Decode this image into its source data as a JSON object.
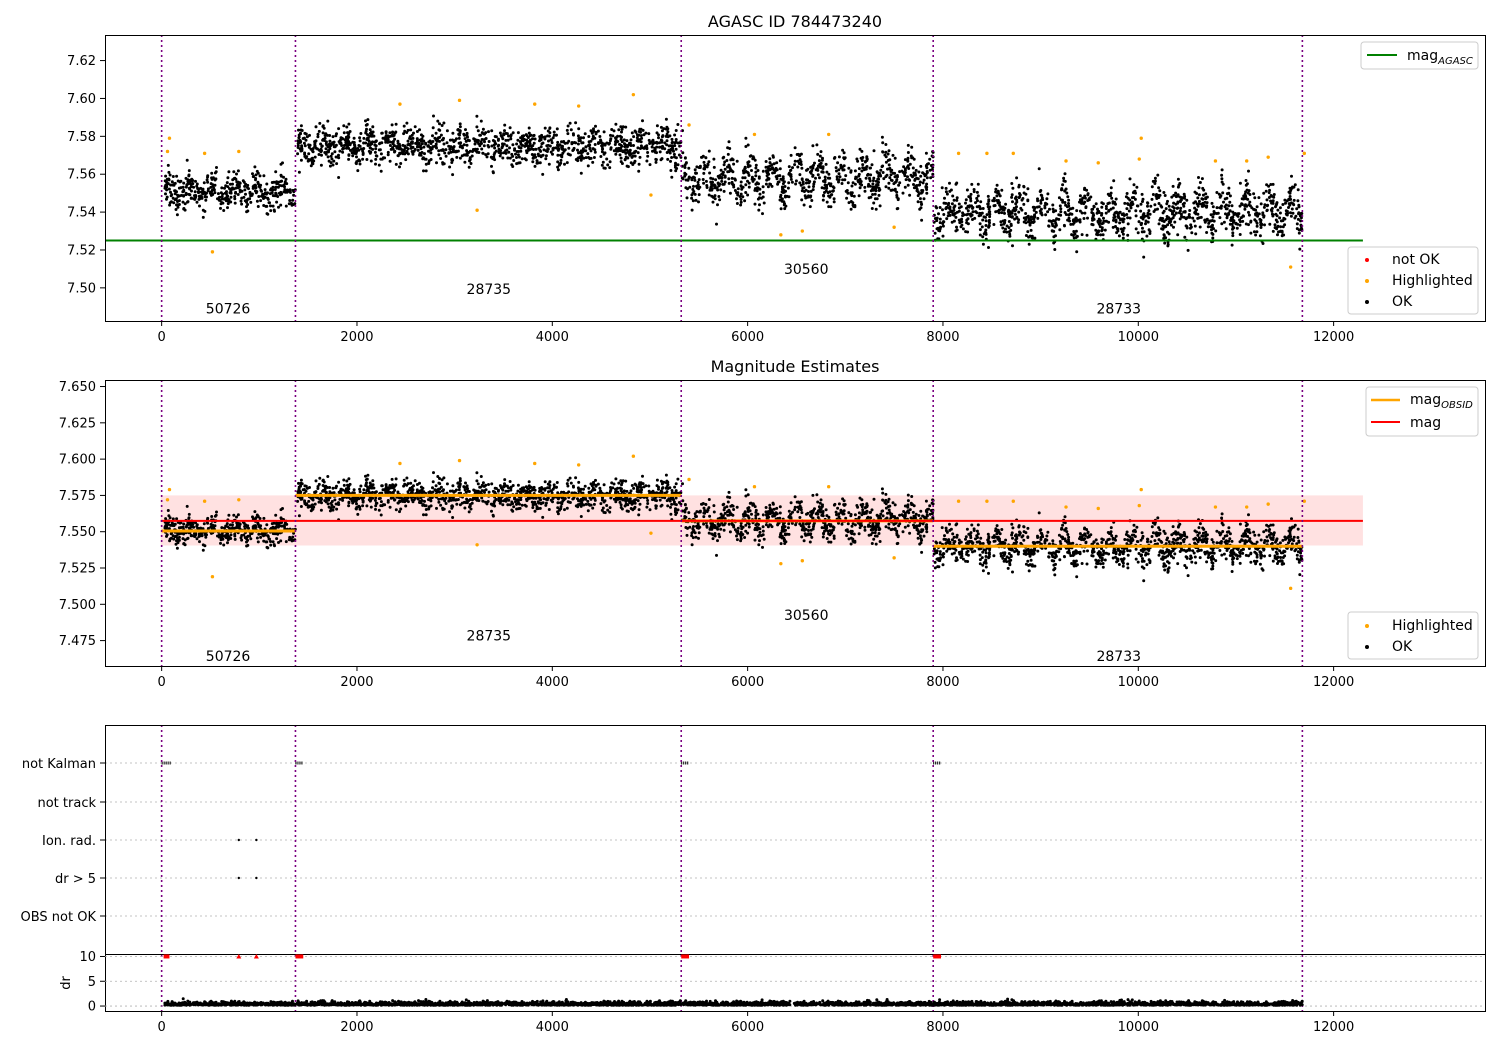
{
  "chart_data": [
    {
      "type": "scatter",
      "title": "AGASC ID 784473240",
      "xlim": [
        -580,
        13550
      ],
      "ylim": [
        7.4825,
        7.6335
      ],
      "x_ticks": [
        "0",
        "2000",
        "4000",
        "6000",
        "8000",
        "10000",
        "12000"
      ],
      "y_ticks": [
        "7.50",
        "7.52",
        "7.54",
        "7.56",
        "7.58",
        "7.60",
        "7.62"
      ],
      "lines": [
        {
          "name": "mag_AGASC",
          "color": "#008000",
          "y": 7.525,
          "x_range": [
            -580,
            12300
          ]
        }
      ],
      "obsid_boundaries": [
        0,
        1370,
        5320,
        7900,
        11680
      ],
      "obsid_labels": [
        {
          "text": "50726",
          "x": 680,
          "y": 7.489
        },
        {
          "text": "28735",
          "x": 3350,
          "y": 7.4995
        },
        {
          "text": "30560",
          "x": 6600,
          "y": 7.51
        },
        {
          "text": "28733",
          "x": 9800,
          "y": 7.489
        }
      ],
      "segments": [
        {
          "x_range": [
            30,
            1370
          ],
          "level": 7.551,
          "spread": 0.0045
        },
        {
          "x_range": [
            1390,
            5320
          ],
          "level": 7.575,
          "spread": 0.005
        },
        {
          "x_range": [
            5330,
            7900
          ],
          "level": 7.558,
          "spread": 0.006
        },
        {
          "x_range": [
            7910,
            11680
          ],
          "level": 7.54,
          "spread": 0.006
        }
      ],
      "highlighted_points": [
        [
          60,
          7.572
        ],
        [
          80,
          7.579
        ],
        [
          440,
          7.571
        ],
        [
          520,
          7.519
        ],
        [
          790,
          7.572
        ],
        [
          3050,
          7.599
        ],
        [
          3230,
          7.541
        ],
        [
          2440,
          7.597
        ],
        [
          3820,
          7.597
        ],
        [
          4270,
          7.596
        ],
        [
          4830,
          7.602
        ],
        [
          5010,
          7.549
        ],
        [
          5400,
          7.586
        ],
        [
          6070,
          7.581
        ],
        [
          6340,
          7.528
        ],
        [
          6560,
          7.53
        ],
        [
          6830,
          7.581
        ],
        [
          7500,
          7.532
        ],
        [
          8160,
          7.571
        ],
        [
          8450,
          7.571
        ],
        [
          8720,
          7.571
        ],
        [
          9260,
          7.567
        ],
        [
          9590,
          7.566
        ],
        [
          10010,
          7.568
        ],
        [
          10030,
          7.579
        ],
        [
          10790,
          7.567
        ],
        [
          11110,
          7.567
        ],
        [
          11330,
          7.569
        ],
        [
          11560,
          7.511
        ],
        [
          11700,
          7.571
        ]
      ],
      "legend_upper": [
        {
          "label": "mag",
          "sub": "AGASC",
          "color": "#008000"
        }
      ],
      "legend_lower": [
        {
          "label": "not OK",
          "color": "#ff0000"
        },
        {
          "label": "Highlighted",
          "color": "#ffa500"
        },
        {
          "label": "OK",
          "color": "#000000"
        }
      ]
    },
    {
      "type": "scatter",
      "title": "Magnitude Estimates",
      "xlim": [
        -580,
        13550
      ],
      "ylim": [
        7.4575,
        7.6545
      ],
      "x_ticks": [
        "0",
        "2000",
        "4000",
        "6000",
        "8000",
        "10000",
        "12000"
      ],
      "y_ticks": [
        "7.475",
        "7.500",
        "7.525",
        "7.550",
        "7.575",
        "7.600",
        "7.625",
        "7.650"
      ],
      "mean_mag": 7.5575,
      "band": [
        7.5405,
        7.575
      ],
      "obsid_means": [
        {
          "x_range": [
            0,
            1370
          ],
          "mag": 7.5505
        },
        {
          "x_range": [
            1370,
            5320
          ],
          "mag": 7.575
        },
        {
          "x_range": [
            5320,
            7900
          ],
          "mag": 7.5575
        },
        {
          "x_range": [
            7900,
            11680
          ],
          "mag": 7.54
        }
      ],
      "obsid_labels": [
        {
          "text": "50726",
          "x": 680,
          "y": 7.4645
        },
        {
          "text": "28735",
          "x": 3350,
          "y": 7.4785
        },
        {
          "text": "30560",
          "x": 6600,
          "y": 7.4925
        },
        {
          "text": "28733",
          "x": 9800,
          "y": 7.4645
        }
      ],
      "legend_upper": [
        {
          "label": "mag",
          "sub": "OBSID",
          "color": "#ffa500"
        },
        {
          "label": "mag",
          "sub": "",
          "color": "#ff0000"
        }
      ],
      "legend_lower": [
        {
          "label": "Highlighted",
          "color": "#ffa500"
        },
        {
          "label": "OK",
          "color": "#000000"
        }
      ]
    },
    {
      "type": "scatter",
      "title": "",
      "flag_categories": [
        "not Kalman",
        "not track",
        "Ion. rad.",
        "dr > 5",
        "OBS not OK"
      ],
      "flag_points": {
        "not Kalman": [
          [
            0,
            100
          ],
          [
            1370,
            1450
          ],
          [
            5320,
            5400
          ],
          [
            7900,
            7980
          ]
        ],
        "Ion. rad.": [
          [
            790
          ],
          [
            970
          ]
        ],
        "dr > 5": [
          [
            790
          ],
          [
            970
          ]
        ]
      },
      "dr_ylabel": "dr",
      "dr_ylim": [
        -1,
        10.5
      ],
      "dr_ticks": [
        "0",
        "5",
        "10"
      ],
      "x_ticks": [
        "0",
        "2000",
        "4000",
        "6000",
        "8000",
        "10000",
        "12000"
      ],
      "dr_clipped_red": [
        [
          20,
          80
        ],
        [
          790
        ],
        [
          970
        ],
        [
          1370,
          1450
        ],
        [
          5320,
          5400
        ],
        [
          7900,
          7980
        ]
      ]
    }
  ],
  "colors": {
    "ok": "#000000",
    "highlighted": "#ffa500",
    "not_ok": "#ff0000",
    "agasc": "#008000",
    "mean": "#ff0000",
    "obsid": "#ffa500",
    "band": "#ffc8c8",
    "boundary": "#7a0080"
  }
}
